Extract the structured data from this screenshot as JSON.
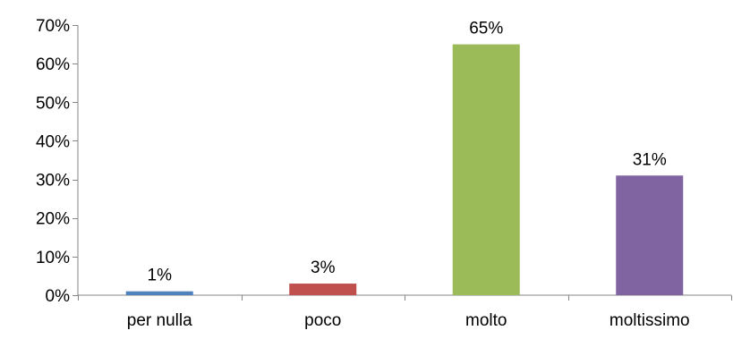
{
  "chart_data": {
    "type": "bar",
    "categories": [
      "per nulla",
      "poco",
      "molto",
      "moltissimo"
    ],
    "values": [
      1,
      3,
      65,
      31
    ],
    "data_labels": [
      "1%",
      "3%",
      "65%",
      "31%"
    ],
    "colors": [
      "#4F81BD",
      "#C0504D",
      "#9BBB59",
      "#8064A2"
    ],
    "ylim": [
      0,
      70
    ],
    "yticks": [
      0,
      10,
      20,
      30,
      40,
      50,
      60,
      70
    ],
    "ytick_labels": [
      "0%",
      "10%",
      "20%",
      "30%",
      "40%",
      "50%",
      "60%",
      "70%"
    ],
    "grid": false,
    "legend": "none",
    "title": "",
    "xlabel": "",
    "ylabel": ""
  }
}
